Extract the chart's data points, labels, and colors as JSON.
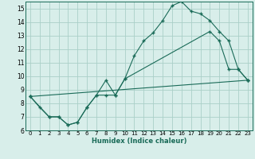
{
  "xlabel": "Humidex (Indice chaleur)",
  "background_color": "#d8eeea",
  "grid_color": "#aacfc8",
  "line_color": "#1a6b58",
  "xlim": [
    -0.5,
    23.5
  ],
  "ylim": [
    6,
    15.5
  ],
  "xticks": [
    0,
    1,
    2,
    3,
    4,
    5,
    6,
    7,
    8,
    9,
    10,
    11,
    12,
    13,
    14,
    15,
    16,
    17,
    18,
    19,
    20,
    21,
    22,
    23
  ],
  "yticks": [
    6,
    7,
    8,
    9,
    10,
    11,
    12,
    13,
    14,
    15
  ],
  "line1_x": [
    0,
    1,
    2,
    3,
    4,
    5,
    6,
    7,
    8,
    9,
    10,
    11,
    12,
    13,
    14,
    15,
    16,
    17,
    18,
    19,
    20,
    21,
    22,
    23
  ],
  "line1_y": [
    8.5,
    7.7,
    7.0,
    7.0,
    6.4,
    6.6,
    7.7,
    8.6,
    9.7,
    8.6,
    9.8,
    11.5,
    12.6,
    13.2,
    14.1,
    15.2,
    15.5,
    14.8,
    14.6,
    14.1,
    13.3,
    12.6,
    10.5,
    9.7
  ],
  "line2_x": [
    0,
    2,
    3,
    4,
    5,
    6,
    7,
    8,
    9,
    10,
    19,
    20,
    21,
    22,
    23
  ],
  "line2_y": [
    8.5,
    7.0,
    7.0,
    6.4,
    6.6,
    7.7,
    8.6,
    8.6,
    8.6,
    9.8,
    13.3,
    12.6,
    10.5,
    10.5,
    9.7
  ],
  "line3_x": [
    0,
    23
  ],
  "line3_y": [
    8.5,
    9.7
  ]
}
